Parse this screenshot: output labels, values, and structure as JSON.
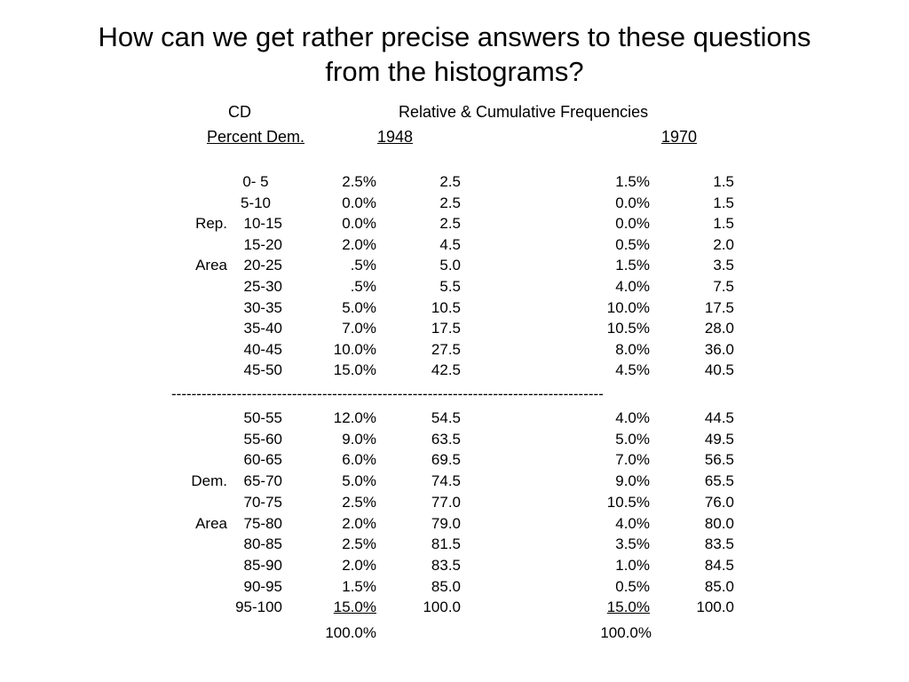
{
  "title": {
    "line1": "How can we get rather precise answers to these questions",
    "line2": "from the histograms?"
  },
  "header": {
    "cd": "CD",
    "relcum": "Relative & Cumulative Frequencies",
    "percent_dem": "Percent Dem.",
    "year1": "1948",
    "year2": "1970"
  },
  "rows_top": [
    {
      "area": "",
      "range": "0- 5",
      "p1948": "2.5%",
      "c1948": "2.5",
      "p1970": "1.5%",
      "c1970": "1.5"
    },
    {
      "area": "",
      "range": "5-10",
      "p1948": "0.0%",
      "c1948": "2.5",
      "p1970": "0.0%",
      "c1970": "1.5"
    },
    {
      "area": "Rep.",
      "range": "10-15",
      "p1948": "0.0%",
      "c1948": "2.5",
      "p1970": "0.0%",
      "c1970": "1.5"
    },
    {
      "area": "",
      "range": "15-20",
      "p1948": "2.0%",
      "c1948": "4.5",
      "p1970": "0.5%",
      "c1970": "2.0"
    },
    {
      "area": "Area",
      "range": "20-25",
      "p1948": ".5%",
      "c1948": "5.0",
      "p1970": "1.5%",
      "c1970": "3.5"
    },
    {
      "area": "",
      "range": "25-30",
      "p1948": ".5%",
      "c1948": "5.5",
      "p1970": "4.0%",
      "c1970": "7.5"
    },
    {
      "area": "",
      "range": "30-35",
      "p1948": "5.0%",
      "c1948": "10.5",
      "p1970": "10.0%",
      "c1970": "17.5"
    },
    {
      "area": "",
      "range": "35-40",
      "p1948": "7.0%",
      "c1948": "17.5",
      "p1970": "10.5%",
      "c1970": "28.0"
    },
    {
      "area": "",
      "range": "40-45",
      "p1948": "10.0%",
      "c1948": "27.5",
      "p1970": "8.0%",
      "c1970": "36.0"
    },
    {
      "area": "",
      "range": "45-50",
      "p1948": "15.0%",
      "c1948": "42.5",
      "p1970": "4.5%",
      "c1970": "40.5"
    }
  ],
  "separator": "--------------------------------------------------------------------------------------",
  "rows_bottom": [
    {
      "area": "",
      "range": "50-55",
      "p1948": "12.0%",
      "c1948": "54.5",
      "p1970": "4.0%",
      "c1970": "44.5"
    },
    {
      "area": "",
      "range": "55-60",
      "p1948": "9.0%",
      "c1948": "63.5",
      "p1970": "5.0%",
      "c1970": "49.5"
    },
    {
      "area": "",
      "range": "60-65",
      "p1948": "6.0%",
      "c1948": "69.5",
      "p1970": "7.0%",
      "c1970": "56.5"
    },
    {
      "area": "Dem.",
      "range": "65-70",
      "p1948": "5.0%",
      "c1948": "74.5",
      "p1970": "9.0%",
      "c1970": "65.5"
    },
    {
      "area": "",
      "range": "70-75",
      "p1948": "2.5%",
      "c1948": "77.0",
      "p1970": "10.5%",
      "c1970": "76.0"
    },
    {
      "area": "Area",
      "range": "75-80",
      "p1948": "2.0%",
      "c1948": "79.0",
      "p1970": "4.0%",
      "c1970": "80.0"
    },
    {
      "area": "",
      "range": "80-85",
      "p1948": "2.5%",
      "c1948": "81.5",
      "p1970": "3.5%",
      "c1970": "83.5"
    },
    {
      "area": "",
      "range": "85-90",
      "p1948": "2.0%",
      "c1948": "83.5",
      "p1970": "1.0%",
      "c1970": "84.5"
    },
    {
      "area": "",
      "range": "90-95",
      "p1948": "1.5%",
      "c1948": "85.0",
      "p1970": "0.5%",
      "c1970": "85.0"
    },
    {
      "area": "",
      "range": "95-100",
      "p1948": "15.0%",
      "c1948": "100.0",
      "p1970": "15.0%",
      "c1970": "100.0"
    }
  ],
  "totals": {
    "t1948": "100.0%",
    "t1970": "100.0%"
  }
}
